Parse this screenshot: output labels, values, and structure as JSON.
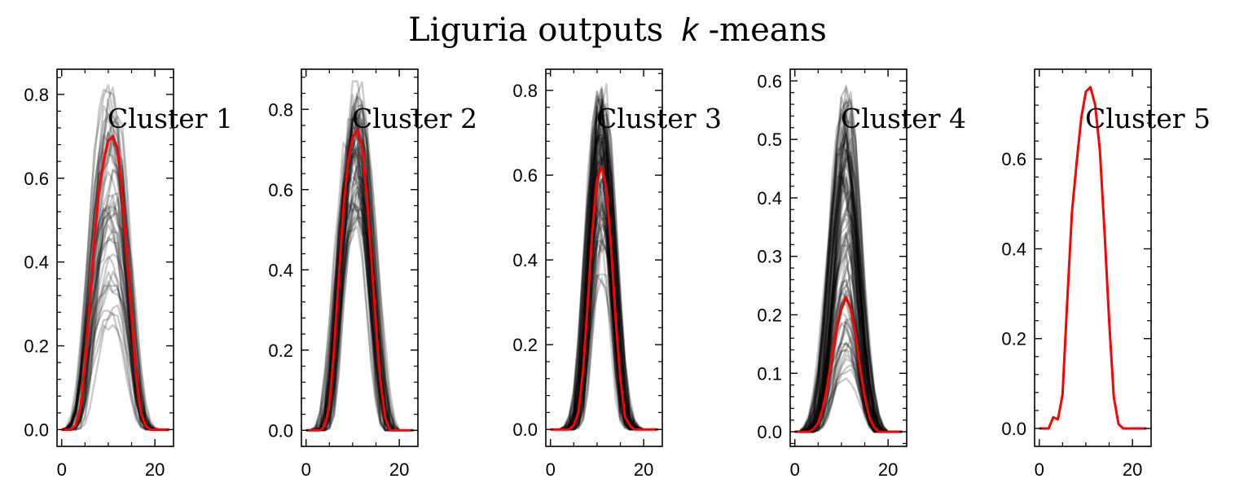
{
  "title": "Liguria outputs",
  "title_k": "k",
  "title_suffix": "-means",
  "chart_data": [
    {
      "type": "line",
      "label": "Cluster 1",
      "xlim": [
        -1,
        24
      ],
      "ylim": [
        -0.04,
        0.86
      ],
      "xticks": [
        0,
        20
      ],
      "yticks": [
        0.0,
        0.2,
        0.4,
        0.6,
        0.8
      ],
      "ytick_labels": [
        "0.0",
        "0.2",
        "0.4",
        "0.6",
        "0.8"
      ],
      "member_count": 45,
      "member_peak_range": [
        0.2,
        0.82
      ],
      "centroid": {
        "x": [
          0,
          1,
          2,
          3,
          4,
          5,
          6,
          7,
          8,
          9,
          10,
          11,
          12,
          13,
          14,
          15,
          16,
          17,
          18,
          19,
          20,
          21,
          22,
          23
        ],
        "y": [
          0,
          0,
          0,
          0.01,
          0.05,
          0.15,
          0.3,
          0.45,
          0.57,
          0.64,
          0.69,
          0.7,
          0.67,
          0.56,
          0.42,
          0.27,
          0.13,
          0.04,
          0.01,
          0,
          0,
          0,
          0,
          0
        ]
      }
    },
    {
      "type": "line",
      "label": "Cluster 2",
      "xlim": [
        -1,
        24
      ],
      "ylim": [
        -0.04,
        0.9
      ],
      "xticks": [
        0,
        20
      ],
      "yticks": [
        0.0,
        0.2,
        0.4,
        0.6,
        0.8
      ],
      "ytick_labels": [
        "0.0",
        "0.2",
        "0.4",
        "0.6",
        "0.8"
      ],
      "member_count": 60,
      "member_peak_range": [
        0.48,
        0.85
      ],
      "centroid": {
        "x": [
          0,
          1,
          2,
          3,
          4,
          5,
          6,
          7,
          8,
          9,
          10,
          11,
          12,
          13,
          14,
          15,
          16,
          17,
          18,
          19,
          20,
          21,
          22,
          23
        ],
        "y": [
          0,
          0,
          0,
          0,
          0.01,
          0.06,
          0.2,
          0.38,
          0.55,
          0.67,
          0.73,
          0.75,
          0.71,
          0.59,
          0.43,
          0.26,
          0.12,
          0.03,
          0,
          0,
          0,
          0,
          0,
          0
        ]
      }
    },
    {
      "type": "line",
      "label": "Cluster 3",
      "xlim": [
        -1,
        24
      ],
      "ylim": [
        -0.04,
        0.85
      ],
      "xticks": [
        0,
        20
      ],
      "yticks": [
        0.0,
        0.2,
        0.4,
        0.6,
        0.8
      ],
      "ytick_labels": [
        "0.0",
        "0.2",
        "0.4",
        "0.6",
        "0.8"
      ],
      "member_count": 80,
      "member_peak_range": [
        0.35,
        0.8
      ],
      "centroid": {
        "x": [
          0,
          1,
          2,
          3,
          4,
          5,
          6,
          7,
          8,
          9,
          10,
          11,
          12,
          13,
          14,
          15,
          16,
          17,
          18,
          19,
          20,
          21,
          22,
          23
        ],
        "y": [
          0,
          0,
          0,
          0,
          0,
          0.01,
          0.04,
          0.14,
          0.3,
          0.47,
          0.59,
          0.62,
          0.57,
          0.43,
          0.26,
          0.12,
          0.03,
          0.01,
          0,
          0,
          0,
          0,
          0,
          0
        ]
      }
    },
    {
      "type": "line",
      "label": "Cluster 4",
      "xlim": [
        -1,
        24
      ],
      "ylim": [
        -0.025,
        0.62
      ],
      "xticks": [
        0,
        20
      ],
      "yticks": [
        0.0,
        0.1,
        0.2,
        0.3,
        0.4,
        0.5,
        0.6
      ],
      "ytick_labels": [
        "0.0",
        "0.1",
        "0.2",
        "0.3",
        "0.4",
        "0.5",
        "0.6"
      ],
      "member_count": 90,
      "member_peak_range": [
        0.03,
        0.59
      ],
      "centroid": {
        "x": [
          0,
          1,
          2,
          3,
          4,
          5,
          6,
          7,
          8,
          9,
          10,
          11,
          12,
          13,
          14,
          15,
          16,
          17,
          18,
          19,
          20,
          21,
          22,
          23
        ],
        "y": [
          0,
          0,
          0,
          0,
          0.005,
          0.015,
          0.04,
          0.08,
          0.13,
          0.18,
          0.21,
          0.23,
          0.21,
          0.17,
          0.11,
          0.06,
          0.025,
          0.008,
          0,
          0,
          0,
          0,
          0,
          0
        ]
      }
    },
    {
      "type": "line",
      "label": "Cluster 5",
      "xlim": [
        -1,
        24
      ],
      "ylim": [
        -0.04,
        0.8
      ],
      "xticks": [
        0,
        20
      ],
      "yticks": [
        0.0,
        0.2,
        0.4,
        0.6
      ],
      "ytick_labels": [
        "0.0",
        "0.2",
        "0.4",
        "0.6"
      ],
      "member_count": 0,
      "member_peak_range": [
        0,
        0
      ],
      "centroid": {
        "x": [
          0,
          1,
          2,
          3,
          4,
          5,
          6,
          7,
          8,
          9,
          10,
          11,
          12,
          13,
          14,
          15,
          16,
          17,
          18,
          19,
          20,
          21,
          22,
          23
        ],
        "y": [
          0,
          0,
          0,
          0.025,
          0.02,
          0.075,
          0.28,
          0.48,
          0.59,
          0.69,
          0.75,
          0.76,
          0.72,
          0.62,
          0.44,
          0.24,
          0.07,
          0.01,
          0,
          0,
          0,
          0,
          0,
          0
        ]
      }
    }
  ],
  "colors": {
    "centroid": "#ff0000",
    "members": "#000000",
    "axes": "#000000"
  }
}
